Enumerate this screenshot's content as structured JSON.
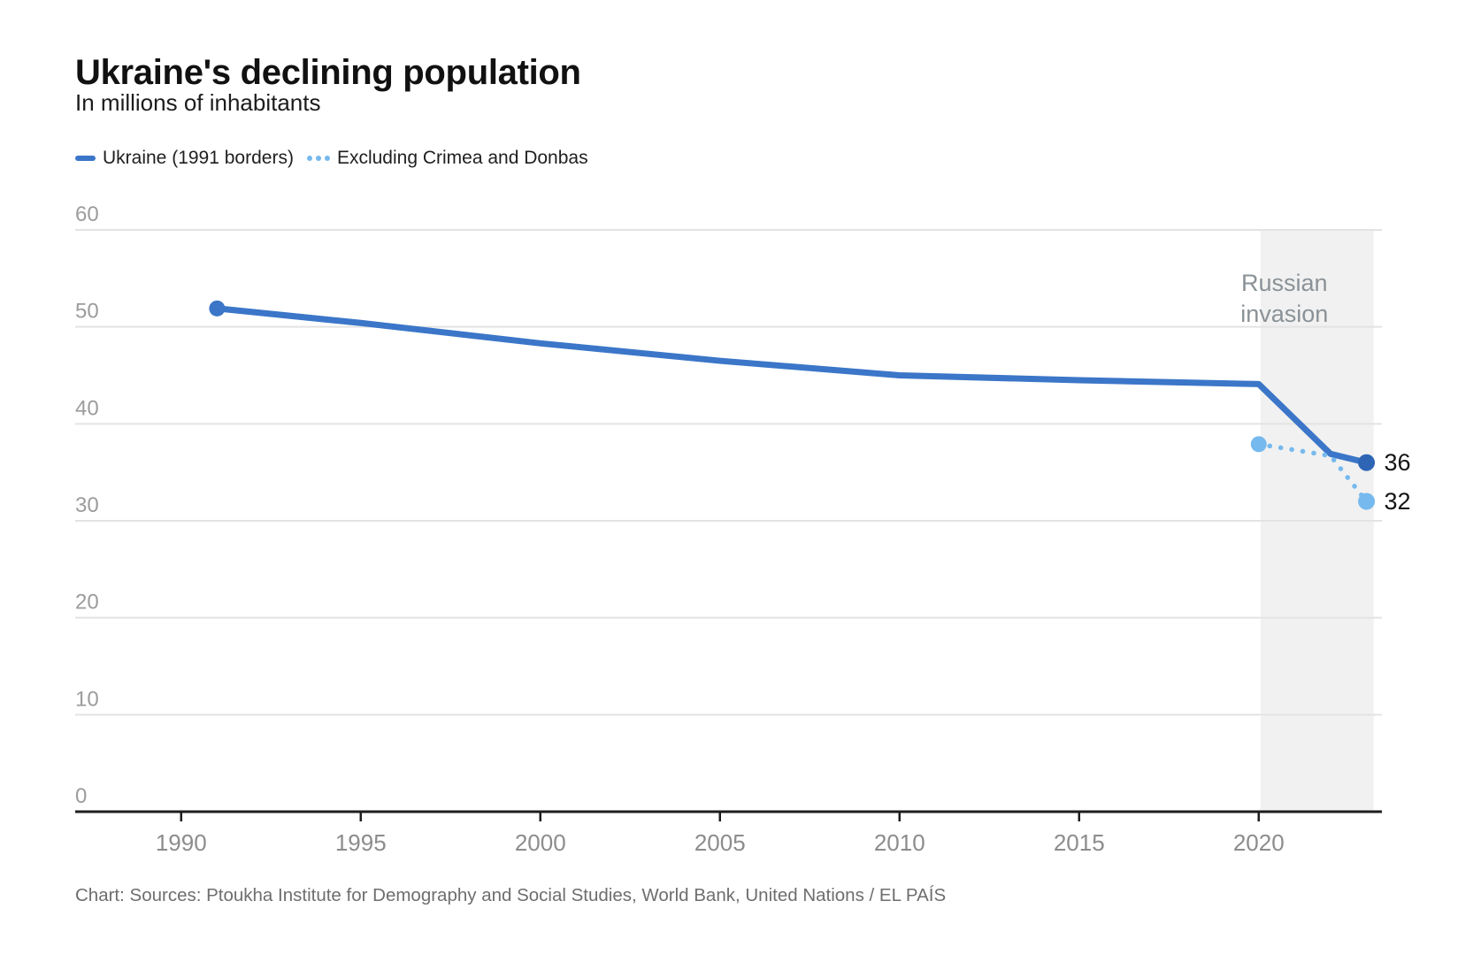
{
  "chart_data": {
    "type": "line",
    "title": "Ukraine's declining population",
    "subtitle": "In millions of inhabitants",
    "xlabel": "",
    "ylabel": "In millions of inhabitants",
    "xlim": [
      1987.05,
      2023.43
    ],
    "ylim": [
      0,
      60
    ],
    "x_ticks": [
      1990,
      1995,
      2000,
      2005,
      2010,
      2015,
      2020
    ],
    "y_ticks": [
      0,
      10,
      20,
      30,
      40,
      50,
      60
    ],
    "grid": "horizontal",
    "grid_color": "#e3e3e3",
    "axis_color": "#1d1d1d",
    "x_tick_color": "#8c8c8c",
    "y_tick_color": "#9c9c9c",
    "end_label_color": "#141414",
    "legend_position": "top-left",
    "series": [
      {
        "name": "Ukraine (1991 borders)",
        "color": "#3b76c8",
        "line_style": "solid",
        "points": [
          [
            1991,
            51.9
          ],
          [
            1995,
            50.4
          ],
          [
            2000,
            48.3
          ],
          [
            2005,
            46.5
          ],
          [
            2010,
            45.0
          ],
          [
            2015,
            44.5
          ],
          [
            2020,
            44.1
          ],
          [
            2022,
            36.9
          ],
          [
            2023,
            36
          ]
        ],
        "start_dot": true,
        "end_dot": true,
        "end_dot_color": "#2e66b5",
        "end_label": "36"
      },
      {
        "name": "Excluding Crimea and Donbas",
        "color": "#76b9ee",
        "line_style": "dotted",
        "points": [
          [
            2020,
            37.9
          ],
          [
            2021,
            37.3
          ],
          [
            2022,
            36.7
          ],
          [
            2023,
            32
          ]
        ],
        "start_dot": true,
        "end_dot": true,
        "end_dot_color": "#76b9ee",
        "end_label": "32"
      }
    ],
    "annotation_band": {
      "x0": 2020.05,
      "x1": 2023.2,
      "color": "#f1f1f1",
      "label_lines": [
        "Russian",
        "invasion"
      ],
      "label_color": "#8a9297"
    }
  },
  "footer": {
    "source": "Chart: Sources: Ptoukha Institute for Demography and Social Studies, World Bank, United Nations / EL PAÍS"
  }
}
